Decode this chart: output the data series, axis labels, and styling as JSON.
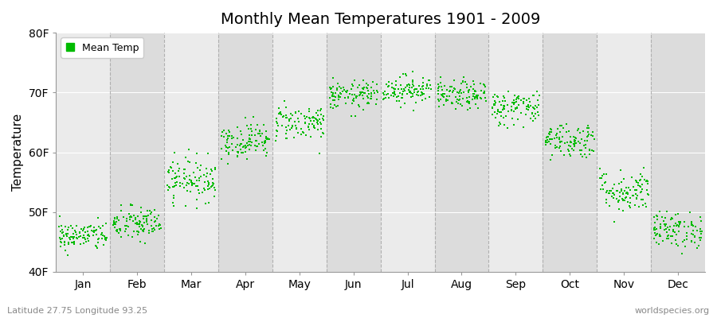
{
  "title": "Monthly Mean Temperatures 1901 - 2009",
  "ylabel": "Temperature",
  "bottom_left_text": "Latitude 27.75 Longitude 93.25",
  "bottom_right_text": "worldspecies.org",
  "legend_label": "Mean Temp",
  "ylim": [
    40,
    80
  ],
  "yticks": [
    40,
    50,
    60,
    70,
    80
  ],
  "ytick_labels": [
    "40F",
    "50F",
    "60F",
    "70F",
    "80F"
  ],
  "months": [
    "Jan",
    "Feb",
    "Mar",
    "Apr",
    "May",
    "Jun",
    "Jul",
    "Aug",
    "Sep",
    "Oct",
    "Nov",
    "Dec"
  ],
  "n_years": 109,
  "seed": 42,
  "dot_color": "#00BB00",
  "dot_size": 3,
  "background_color": "#ffffff",
  "plot_bg_color": "#ebebeb",
  "band_color_light": "#ebebeb",
  "band_color_dark": "#dcdcdc",
  "grid_color": "#ffffff",
  "dashed_line_color": "#aaaaaa",
  "mean_temps_f": [
    46.0,
    48.0,
    55.5,
    62.0,
    65.0,
    69.5,
    70.5,
    69.5,
    67.5,
    62.0,
    53.5,
    47.0
  ],
  "std_temps_f": [
    1.2,
    1.5,
    1.8,
    1.5,
    1.5,
    1.2,
    1.2,
    1.2,
    1.5,
    1.5,
    1.8,
    1.5
  ]
}
